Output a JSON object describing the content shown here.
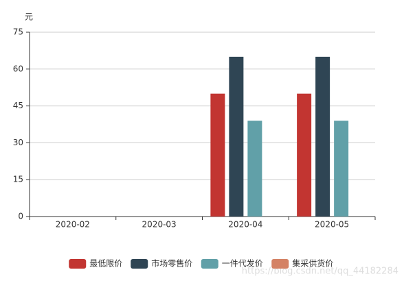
{
  "chart_data": {
    "type": "bar",
    "y_axis_label": "元",
    "categories": [
      "2020-02",
      "2020-03",
      "2020-04",
      "2020-05"
    ],
    "series": [
      {
        "name": "最低限价",
        "color": "#c23531",
        "values": [
          null,
          null,
          50,
          50
        ]
      },
      {
        "name": "市场零售价",
        "color": "#2f4554",
        "values": [
          null,
          null,
          65,
          65
        ]
      },
      {
        "name": "一件代发价",
        "color": "#61a0a8",
        "values": [
          null,
          null,
          39,
          39
        ]
      },
      {
        "name": "集采供货价",
        "color": "#d48265",
        "values": [
          null,
          null,
          null,
          null
        ]
      }
    ],
    "ylim": [
      0,
      75
    ],
    "yticks": [
      0,
      15,
      30,
      45,
      60,
      75
    ],
    "grid": true,
    "legend": "bottom",
    "watermark": "https://blog.csdn.net/qq_44182284"
  }
}
